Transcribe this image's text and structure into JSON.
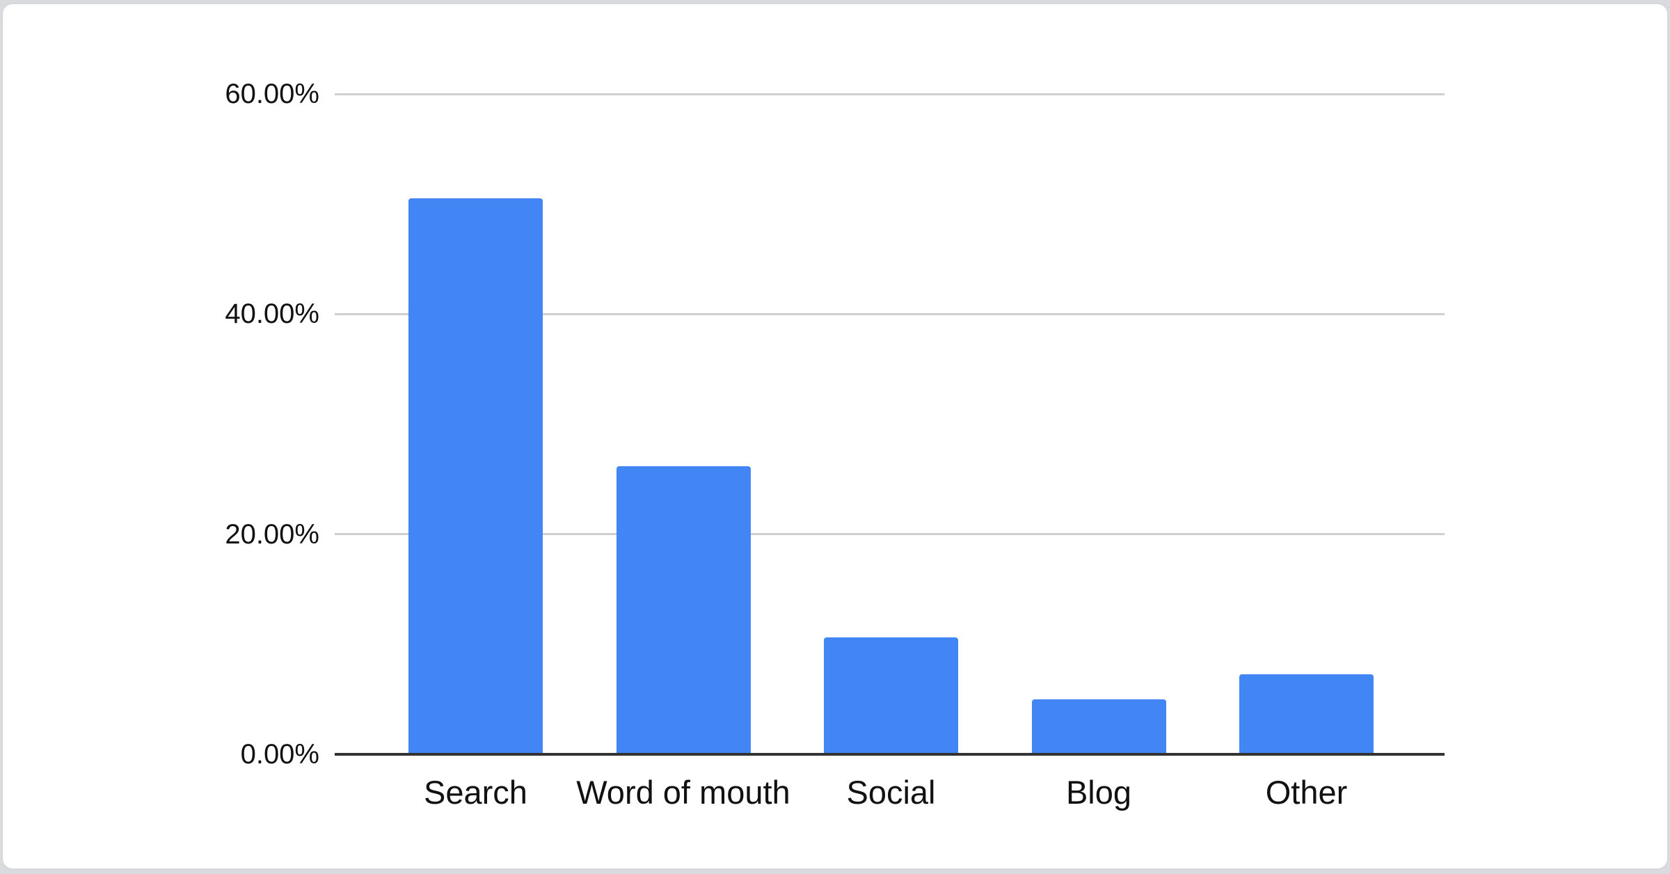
{
  "page": {
    "background_color": "#d9dbde",
    "card_color": "#ffffff",
    "card_border_color": "#d5d7da"
  },
  "chart_data": {
    "type": "bar",
    "title": "",
    "categories": [
      "Search",
      "Word of mouth",
      "Social",
      "Blog",
      "Other"
    ],
    "values": [
      50.5,
      26.2,
      10.6,
      5.0,
      7.3
    ],
    "value_unit": "percent",
    "series_name": "",
    "y_ticks": [
      {
        "value": 60,
        "label": "60.00%"
      },
      {
        "value": 40,
        "label": "40.00%"
      },
      {
        "value": 20,
        "label": "20.00%"
      },
      {
        "value": 0,
        "label": "0.00%"
      }
    ],
    "ylim": [
      0,
      60
    ],
    "xlabel": "",
    "ylabel": "",
    "legend": "none",
    "grid": true,
    "bar_color": "#4285f4",
    "gridline_color": "#cfcfcf",
    "axis_color": "#333333",
    "tick_label_color": "#111111"
  }
}
